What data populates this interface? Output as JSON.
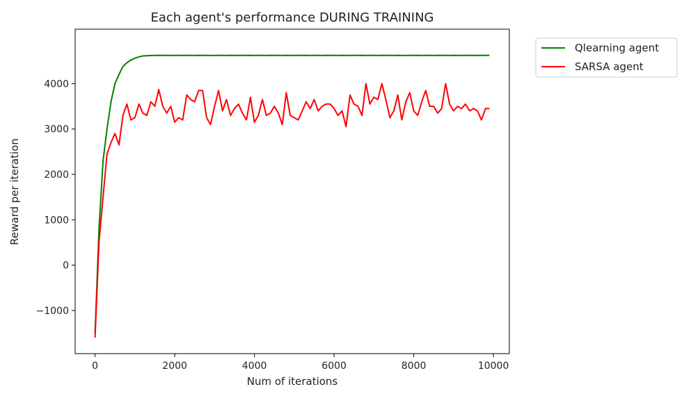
{
  "chart_data": {
    "type": "line",
    "title": "Each agent's performance DURING TRAINING",
    "xlabel": "Num of iterations",
    "ylabel": "Reward per iteration",
    "xlim": [
      -500,
      10400
    ],
    "ylim": [
      -1950,
      5200
    ],
    "xticks": [
      0,
      2000,
      4000,
      6000,
      8000,
      10000
    ],
    "xtick_labels": [
      "0",
      "2000",
      "4000",
      "6000",
      "8000",
      "10000"
    ],
    "yticks": [
      -1000,
      0,
      1000,
      2000,
      3000,
      4000
    ],
    "ytick_labels": [
      "−1000",
      "0",
      "1000",
      "2000",
      "3000",
      "4000"
    ],
    "grid": false,
    "legend_position": "outside-top-right",
    "x": [
      0,
      100,
      200,
      300,
      400,
      500,
      600,
      700,
      800,
      900,
      1000,
      1100,
      1200,
      1300,
      1400,
      1500,
      1600,
      1700,
      1800,
      1900,
      2000,
      2100,
      2200,
      2300,
      2400,
      2500,
      2600,
      2700,
      2800,
      2900,
      3000,
      3100,
      3200,
      3300,
      3400,
      3500,
      3600,
      3700,
      3800,
      3900,
      4000,
      4100,
      4200,
      4300,
      4400,
      4500,
      4600,
      4700,
      4800,
      4900,
      5000,
      5100,
      5200,
      5300,
      5400,
      5500,
      5600,
      5700,
      5800,
      5900,
      6000,
      6100,
      6200,
      6300,
      6400,
      6500,
      6600,
      6700,
      6800,
      6900,
      7000,
      7100,
      7200,
      7300,
      7400,
      7500,
      7600,
      7700,
      7800,
      7900,
      8000,
      8100,
      8200,
      8300,
      8400,
      8500,
      8600,
      8700,
      8800,
      8900,
      9000,
      9100,
      9200,
      9300,
      9400,
      9500,
      9600,
      9700,
      9800,
      9900
    ],
    "series": [
      {
        "name": "Qlearning agent",
        "color": "#008000",
        "values": [
          -1500,
          800,
          2300,
          3000,
          3600,
          4000,
          4200,
          4380,
          4460,
          4520,
          4560,
          4590,
          4610,
          4615,
          4620,
          4620,
          4625,
          4622,
          4625,
          4620,
          4622,
          4625,
          4620,
          4625,
          4622,
          4620,
          4625,
          4622,
          4625,
          4620,
          4622,
          4625,
          4622,
          4620,
          4625,
          4622,
          4620,
          4625,
          4622,
          4625,
          4620,
          4625,
          4622,
          4620,
          4625,
          4622,
          4625,
          4620,
          4625,
          4622,
          4620,
          4625,
          4622,
          4625,
          4620,
          4625,
          4622,
          4620,
          4625,
          4622,
          4625,
          4620,
          4625,
          4622,
          4620,
          4625,
          4622,
          4625,
          4620,
          4625,
          4622,
          4620,
          4625,
          4622,
          4625,
          4620,
          4625,
          4622,
          4620,
          4625,
          4622,
          4625,
          4620,
          4625,
          4622,
          4620,
          4625,
          4622,
          4625,
          4620,
          4625,
          4622,
          4620,
          4625,
          4622,
          4625,
          4620,
          4625,
          4622,
          4625
        ]
      },
      {
        "name": "SARSA agent",
        "color": "#ff0000",
        "values": [
          -1600,
          500,
          1500,
          2450,
          2700,
          2900,
          2650,
          3300,
          3550,
          3200,
          3250,
          3550,
          3350,
          3300,
          3600,
          3500,
          3870,
          3500,
          3350,
          3500,
          3150,
          3250,
          3200,
          3750,
          3650,
          3600,
          3850,
          3850,
          3250,
          3100,
          3500,
          3850,
          3400,
          3650,
          3300,
          3450,
          3550,
          3350,
          3200,
          3700,
          3150,
          3300,
          3650,
          3300,
          3350,
          3500,
          3350,
          3100,
          3800,
          3300,
          3250,
          3200,
          3400,
          3600,
          3450,
          3650,
          3400,
          3500,
          3550,
          3550,
          3450,
          3300,
          3400,
          3050,
          3750,
          3550,
          3500,
          3300,
          4000,
          3550,
          3700,
          3650,
          4000,
          3650,
          3250,
          3400,
          3750,
          3200,
          3600,
          3800,
          3400,
          3300,
          3600,
          3850,
          3500,
          3500,
          3350,
          3450,
          4000,
          3550,
          3400,
          3500,
          3450,
          3550,
          3400,
          3450,
          3400,
          3200,
          3450,
          3450
        ]
      }
    ]
  }
}
